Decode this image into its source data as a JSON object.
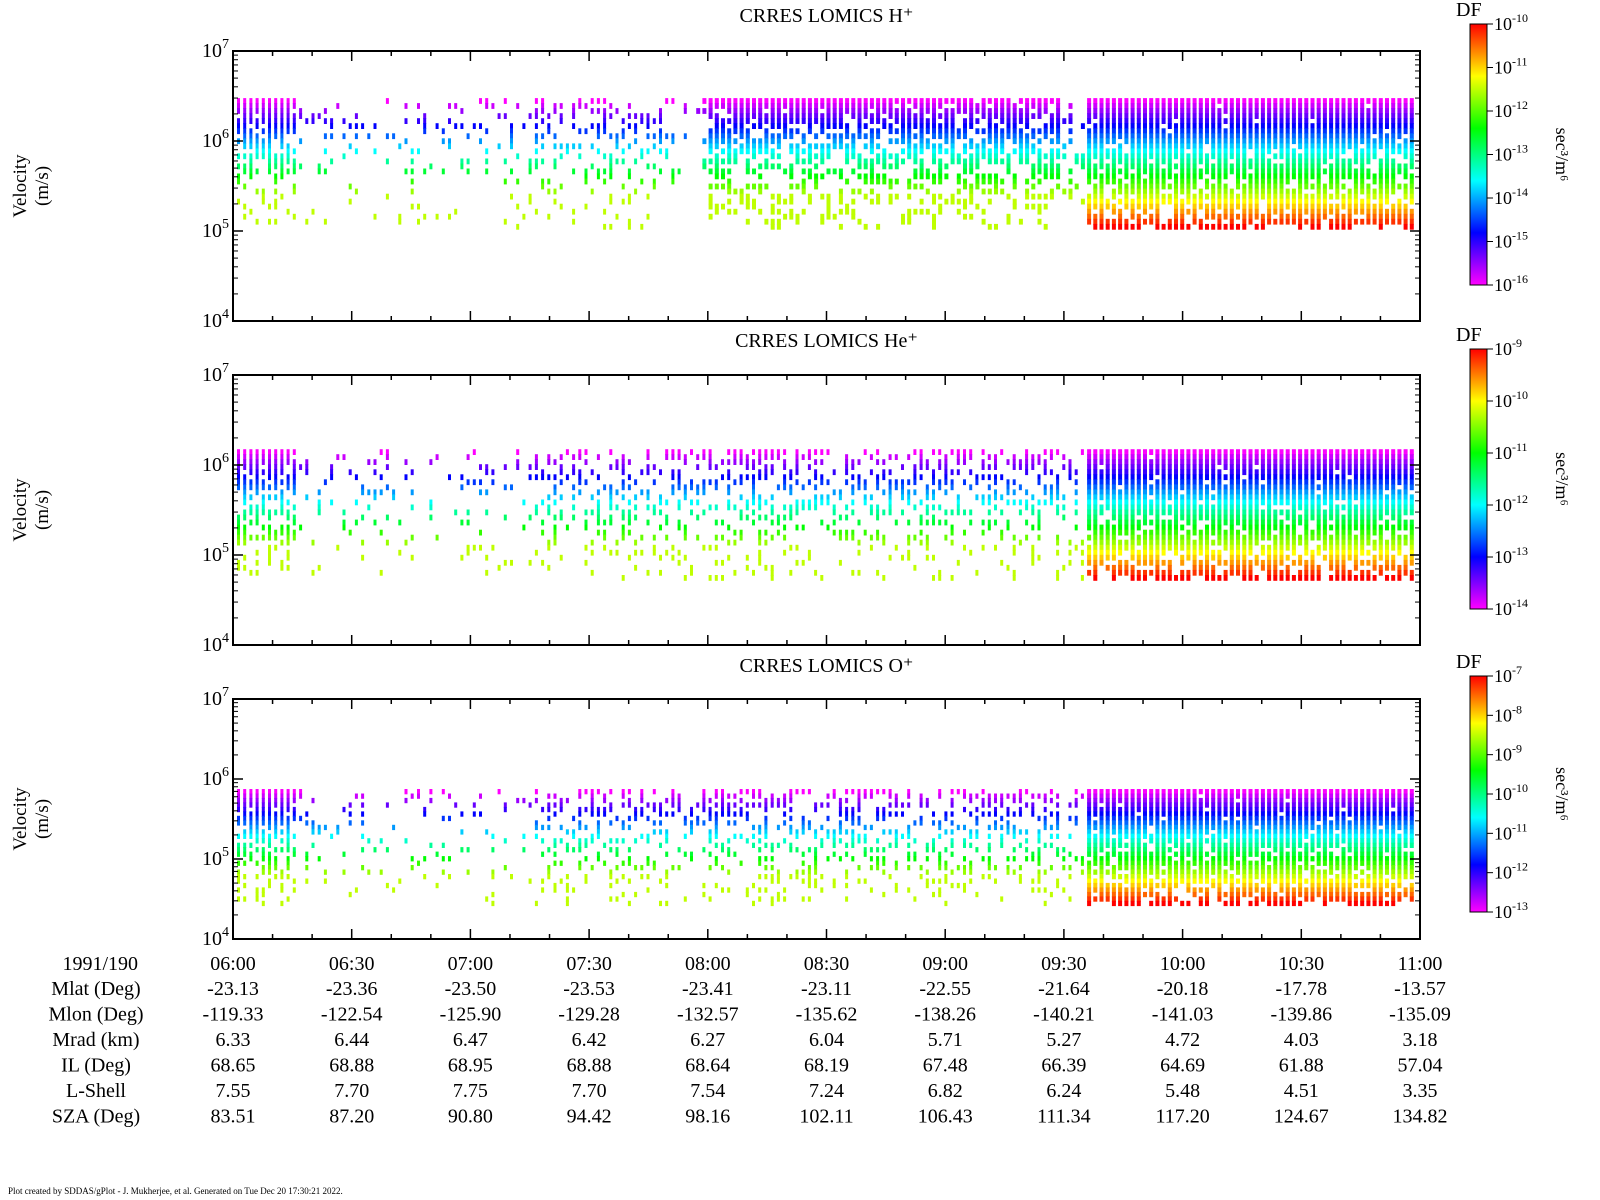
{
  "chart_data": [
    {
      "type": "heatmap",
      "title": "CRRES LOMICS H⁺",
      "ylabel_lines": [
        "Velocity",
        "(m/s)"
      ],
      "yscale": "log",
      "ylim": [
        10000,
        10000000
      ],
      "yticks": [
        "10^4",
        "10^5",
        "10^6",
        "10^7"
      ],
      "xlim": [
        "06:00",
        "11:00"
      ],
      "colorbar": {
        "label": "DF",
        "unit_label": "sec³/m⁶",
        "range": [
          1e-16,
          1e-10
        ],
        "ticks": [
          "10^-10",
          "10^-11",
          "10^-12",
          "10^-13",
          "10^-14",
          "10^-15",
          "10^-16"
        ]
      },
      "vmax": 3000000
    },
    {
      "type": "heatmap",
      "title": "CRRES LOMICS He⁺",
      "ylabel_lines": [
        "Velocity",
        "(m/s)"
      ],
      "yscale": "log",
      "ylim": [
        10000,
        10000000
      ],
      "yticks": [
        "10^4",
        "10^5",
        "10^6",
        "10^7"
      ],
      "xlim": [
        "06:00",
        "11:00"
      ],
      "colorbar": {
        "label": "DF",
        "unit_label": "sec³/m⁶",
        "range": [
          1e-14,
          1e-09
        ],
        "ticks": [
          "10^-9",
          "10^-10",
          "10^-11",
          "10^-12",
          "10^-13",
          "10^-14"
        ]
      },
      "vmax": 1500000
    },
    {
      "type": "heatmap",
      "title": "CRRES LOMICS O⁺",
      "ylabel_lines": [
        "Velocity",
        "(m/s)"
      ],
      "yscale": "log",
      "ylim": [
        10000,
        10000000
      ],
      "yticks": [
        "10^4",
        "10^5",
        "10^6",
        "10^7"
      ],
      "xlim": [
        "06:00",
        "11:00"
      ],
      "colorbar": {
        "label": "DF",
        "unit_label": "sec³/m⁶",
        "range": [
          1e-13,
          1e-07
        ],
        "ticks": [
          "10^-7",
          "10^-8",
          "10^-9",
          "10^-10",
          "10^-11",
          "10^-12",
          "10^-13"
        ]
      },
      "vmax": 750000
    }
  ],
  "ephemeris": {
    "date_label": "1991/190",
    "times": [
      "06:00",
      "06:30",
      "07:00",
      "07:30",
      "08:00",
      "08:30",
      "09:00",
      "09:30",
      "10:00",
      "10:30",
      "11:00"
    ],
    "rows": [
      {
        "label": "Mlat (Deg)",
        "values": [
          "-23.13",
          "-23.36",
          "-23.50",
          "-23.53",
          "-23.41",
          "-23.11",
          "-22.55",
          "-21.64",
          "-20.18",
          "-17.78",
          "-13.57"
        ]
      },
      {
        "label": "Mlon (Deg)",
        "values": [
          "-119.33",
          "-122.54",
          "-125.90",
          "-129.28",
          "-132.57",
          "-135.62",
          "-138.26",
          "-140.21",
          "-141.03",
          "-139.86",
          "-135.09"
        ]
      },
      {
        "label": "Mrad (km)",
        "values": [
          "6.33",
          "6.44",
          "6.47",
          "6.42",
          "6.27",
          "6.04",
          "5.71",
          "5.27",
          "4.72",
          "4.03",
          "3.18"
        ]
      },
      {
        "label": "IL (Deg)",
        "values": [
          "68.65",
          "68.88",
          "68.95",
          "68.88",
          "68.64",
          "68.19",
          "67.48",
          "66.39",
          "64.69",
          "61.88",
          "57.04"
        ]
      },
      {
        "label": "L-Shell",
        "values": [
          "7.55",
          "7.70",
          "7.75",
          "7.70",
          "7.54",
          "7.24",
          "6.82",
          "6.24",
          "5.48",
          "4.51",
          "3.35"
        ]
      },
      {
        "label": "SZA (Deg)",
        "values": [
          "83.51",
          "87.20",
          "90.80",
          "94.42",
          "98.16",
          "102.11",
          "106.43",
          "111.34",
          "117.20",
          "124.67",
          "134.82"
        ]
      }
    ]
  },
  "footer": "Plot created by SDDAS/gPlot - J. Mukherjee, et al.  Generated on Tue Dec 20 17:30:21 2022."
}
